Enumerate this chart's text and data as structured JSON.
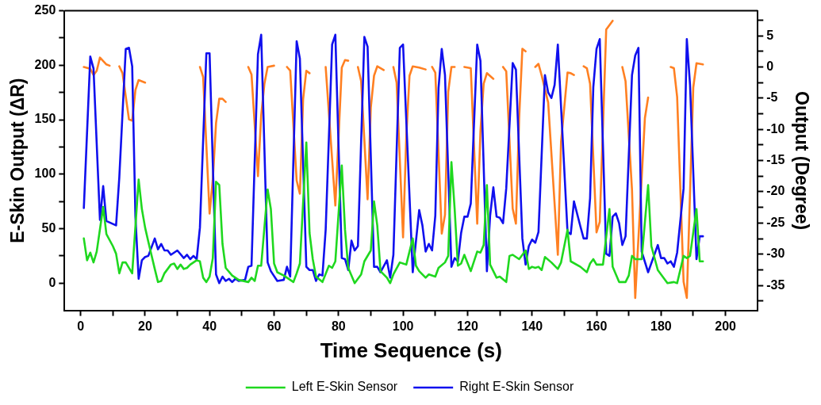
{
  "chart_data": {
    "type": "line",
    "xlabel": "Time Sequence (s)",
    "ylabel": "E-Skin Output (ΔR)",
    "y2label": "Output (Degree)",
    "xlim": [
      -5,
      210
    ],
    "xticks": [
      0,
      {
        "value": 10,
        "label": null
      },
      20,
      {
        "value": 30,
        "label": null
      },
      40,
      {
        "value": 50,
        "label": null
      },
      60,
      {
        "value": 70,
        "label": null
      },
      80,
      {
        "value": 90,
        "label": null
      },
      100,
      {
        "value": 110,
        "label": null
      },
      120,
      {
        "value": 130,
        "label": null
      },
      140,
      {
        "value": 150,
        "label": null
      },
      160,
      {
        "value": 170,
        "label": null
      },
      180,
      {
        "value": 190,
        "label": null
      },
      200
    ],
    "ylim": [
      -25,
      250
    ],
    "yticks": [
      0,
      {
        "value": 25,
        "label": null
      },
      50,
      {
        "value": 75,
        "label": null
      },
      100,
      {
        "value": 125,
        "label": null
      },
      150,
      {
        "value": 175,
        "label": null
      },
      200,
      {
        "value": 225,
        "label": null
      },
      250
    ],
    "y2lim": [
      -39,
      9
    ],
    "y2ticks": [
      {
        "value": -37.5,
        "label": null
      },
      -35,
      {
        "value": -32.5,
        "label": null
      },
      -30,
      {
        "value": -27.5,
        "label": null
      },
      -25,
      {
        "value": -22.5,
        "label": null
      },
      -20,
      {
        "value": -17.5,
        "label": null
      },
      -15,
      {
        "value": -12.5,
        "label": null
      },
      -10,
      {
        "value": -7.5,
        "label": null
      },
      -5,
      {
        "value": -2.5,
        "label": null
      },
      0,
      {
        "value": 2.5,
        "label": null
      },
      5,
      {
        "value": 7.5,
        "label": null
      }
    ],
    "grid": false,
    "legend": "bottom",
    "marker": "none",
    "line_style": "solid",
    "series": [
      {
        "name": "Left E-Skin Sensor",
        "color": "#1fd81f",
        "x": [
          1,
          2,
          3,
          4,
          5,
          7,
          8,
          10,
          11,
          12,
          13,
          14,
          16,
          18,
          19,
          20,
          21,
          23,
          24,
          25,
          26,
          28,
          29,
          30,
          31,
          32,
          33,
          34,
          35,
          36,
          37,
          38,
          39,
          40,
          41,
          42,
          43,
          44,
          45,
          47,
          49,
          52,
          53,
          54,
          55,
          56,
          58,
          59,
          60,
          61,
          63,
          66,
          67,
          68,
          70,
          71,
          72,
          73,
          75,
          77,
          78,
          79,
          81,
          82,
          83,
          85,
          87,
          88,
          90,
          91,
          92,
          93,
          95,
          96,
          97,
          99,
          101,
          103,
          104,
          105,
          107,
          108,
          110,
          111,
          113,
          114,
          115,
          116,
          117,
          118,
          119,
          121,
          123,
          124,
          125,
          126,
          127,
          129,
          130,
          132,
          133,
          134,
          136,
          138,
          139,
          140,
          141,
          142,
          143,
          144,
          146,
          148,
          149,
          151,
          152,
          155,
          157,
          158,
          159,
          160,
          162,
          164,
          165,
          167,
          169,
          170,
          171,
          172,
          174,
          176,
          177,
          179,
          181,
          182,
          184,
          185,
          187,
          188,
          189,
          191,
          192,
          193
        ],
        "values": [
          41,
          21,
          28,
          19,
          29,
          70,
          45,
          34,
          27,
          9,
          19,
          19,
          9,
          95,
          68,
          51,
          38,
          13,
          1,
          2,
          9,
          17,
          18,
          13,
          17,
          13,
          14,
          17,
          19,
          21,
          20,
          5,
          1,
          6,
          23,
          93,
          90,
          36,
          14,
          7,
          3,
          1,
          5,
          2,
          16,
          16,
          86,
          68,
          18,
          10,
          7,
          1,
          9,
          18,
          129,
          46,
          22,
          6,
          1,
          16,
          14,
          20,
          108,
          49,
          14,
          0,
          8,
          20,
          30,
          75,
          53,
          11,
          5,
          0,
          8,
          19,
          17,
          41,
          16,
          11,
          5,
          8,
          6,
          14,
          19,
          25,
          111,
          68,
          16,
          18,
          26,
          11,
          29,
          28,
          35,
          90,
          17,
          5,
          6,
          1,
          25,
          26,
          22,
          30,
          13,
          15,
          14,
          15,
          12,
          24,
          19,
          13,
          19,
          49,
          20,
          15,
          10,
          18,
          22,
          17,
          17,
          68,
          15,
          1,
          1,
          7,
          25,
          22,
          22,
          90,
          34,
          12,
          4,
          0,
          1,
          0,
          25,
          23,
          25,
          68,
          20,
          20
        ]
      },
      {
        "name": "Right E-Skin Sensor",
        "color": "#1010ee",
        "x": [
          1,
          3,
          4,
          6,
          7,
          8,
          11,
          12,
          14,
          15,
          16,
          17,
          18,
          19,
          20,
          21,
          23,
          24,
          25,
          26,
          27,
          28,
          30,
          32,
          33,
          34,
          35,
          36,
          37,
          39,
          40,
          42,
          43,
          44,
          45,
          46,
          47,
          48,
          49,
          51,
          52,
          53,
          55,
          56,
          58,
          59,
          61,
          63,
          64,
          65,
          67,
          68,
          70,
          71,
          72,
          73,
          74,
          75,
          76,
          78,
          79,
          81,
          82,
          83,
          84,
          85,
          86,
          88,
          89,
          91,
          92,
          93,
          95,
          96,
          97,
          99,
          100,
          103,
          105,
          106,
          107,
          108,
          109,
          110,
          111,
          112,
          113,
          115,
          116,
          117,
          118,
          119,
          120,
          121,
          123,
          124,
          126,
          127,
          128,
          129,
          130,
          131,
          132,
          134,
          135,
          137,
          138,
          139,
          140,
          141,
          142,
          144,
          145,
          146,
          147,
          148,
          151,
          152,
          153,
          155,
          156,
          157,
          158,
          159,
          160,
          161,
          163,
          164,
          165,
          166,
          167,
          168,
          169,
          171,
          172,
          173,
          174,
          176,
          179,
          180,
          181,
          182,
          183,
          184,
          185,
          187,
          188,
          189,
          191,
          192,
          193
        ],
        "values": [
          69,
          208,
          197,
          58,
          89,
          57,
          53,
          97,
          215,
          216,
          199,
          61,
          4,
          21,
          24,
          25,
          41,
          31,
          36,
          30,
          30,
          26,
          30,
          23,
          26,
          22,
          25,
          22,
          51,
          211,
          211,
          8,
          0,
          6,
          2,
          4,
          1,
          4,
          2,
          3,
          15,
          16,
          210,
          228,
          19,
          11,
          2,
          3,
          15,
          6,
          222,
          206,
          15,
          12,
          12,
          2,
          8,
          7,
          49,
          219,
          228,
          23,
          22,
          12,
          39,
          30,
          34,
          226,
          217,
          15,
          15,
          10,
          21,
          5,
          26,
          216,
          219,
          10,
          67,
          53,
          29,
          36,
          30,
          62,
          179,
          215,
          191,
          15,
          23,
          20,
          46,
          61,
          61,
          73,
          219,
          204,
          11,
          62,
          88,
          61,
          60,
          55,
          87,
          202,
          196,
          41,
          17,
          34,
          40,
          37,
          47,
          191,
          175,
          170,
          182,
          219,
          47,
          45,
          75,
          52,
          41,
          41,
          78,
          180,
          215,
          224,
          27,
          25,
          61,
          64,
          55,
          35,
          43,
          191,
          209,
          216,
          29,
          10,
          35,
          23,
          23,
          18,
          20,
          15,
          28,
          87,
          224,
          182,
          22,
          43,
          43
        ]
      },
      {
        "color": "#ff8022",
        "axis": "y2",
        "x": [
          1,
          3,
          4,
          5,
          6,
          8,
          9,
          10,
          12,
          13,
          15,
          16,
          17,
          18,
          20,
          28,
          37,
          38,
          40,
          41,
          42,
          43,
          44,
          45,
          48,
          52,
          53,
          55,
          56,
          57,
          58,
          60,
          62,
          64,
          65,
          67,
          68,
          69,
          70,
          71,
          73,
          76,
          79,
          81,
          82,
          83,
          84,
          86,
          87,
          89,
          90,
          91,
          92,
          94,
          95,
          97,
          98,
          100,
          101,
          102,
          103,
          105,
          107,
          108,
          109,
          110,
          112,
          113,
          114,
          115,
          116,
          117,
          119,
          121,
          123,
          124,
          125,
          126,
          128,
          129,
          131,
          132,
          134,
          135,
          136,
          137,
          138,
          139,
          141,
          142,
          143,
          145,
          148,
          149,
          151,
          152,
          153,
          154,
          156,
          157,
          158,
          160,
          161,
          163,
          165,
          166,
          168,
          169,
          171,
          172,
          175,
          176,
          180,
          183,
          184,
          185,
          187,
          188,
          190,
          191,
          193
        ],
        "values": [
          0,
          -0.3,
          -1.3,
          -0.6,
          1.5,
          0.4,
          0.2,
          null,
          0.1,
          -1,
          -8.4,
          -8.6,
          -3.7,
          -2.1,
          -2.5,
          null,
          0,
          -1.6,
          -23.5,
          -18,
          -9,
          -5.1,
          -5.1,
          -5.6,
          null,
          0,
          -1.2,
          -17.5,
          -7.8,
          -2.7,
          0,
          0.2,
          null,
          0,
          -0.6,
          -18.2,
          -20.3,
          -5.2,
          -0.6,
          -1,
          null,
          0,
          -22.2,
          -0.1,
          1.1,
          1,
          null,
          0,
          -2.3,
          -21.2,
          -6.5,
          -1.4,
          0.1,
          -0.5,
          null,
          0,
          -2.5,
          -27.3,
          -11.2,
          -1.4,
          0.1,
          -0.1,
          -0.4,
          null,
          0,
          -0.9,
          -26.7,
          -23.7,
          -4,
          0,
          0,
          null,
          0,
          -0.2,
          -25.1,
          -10.3,
          -2.7,
          -1,
          -1.9,
          null,
          0,
          -0.7,
          -22.7,
          -25.1,
          -8.2,
          2.9,
          2.5,
          null,
          0,
          0.5,
          -1.4,
          -5.7,
          -30.1,
          -12,
          -0.9,
          -1,
          -1.3,
          null,
          0.1,
          -0.2,
          -2.7,
          -26.5,
          -24.8,
          6,
          7.4,
          null,
          0,
          -2.3,
          -19.7,
          -37,
          -8.2,
          -4.9,
          null,
          0,
          -0.2,
          -4.8,
          -34.4,
          -37,
          -3.3,
          0.6,
          0.4
        ]
      }
    ]
  }
}
